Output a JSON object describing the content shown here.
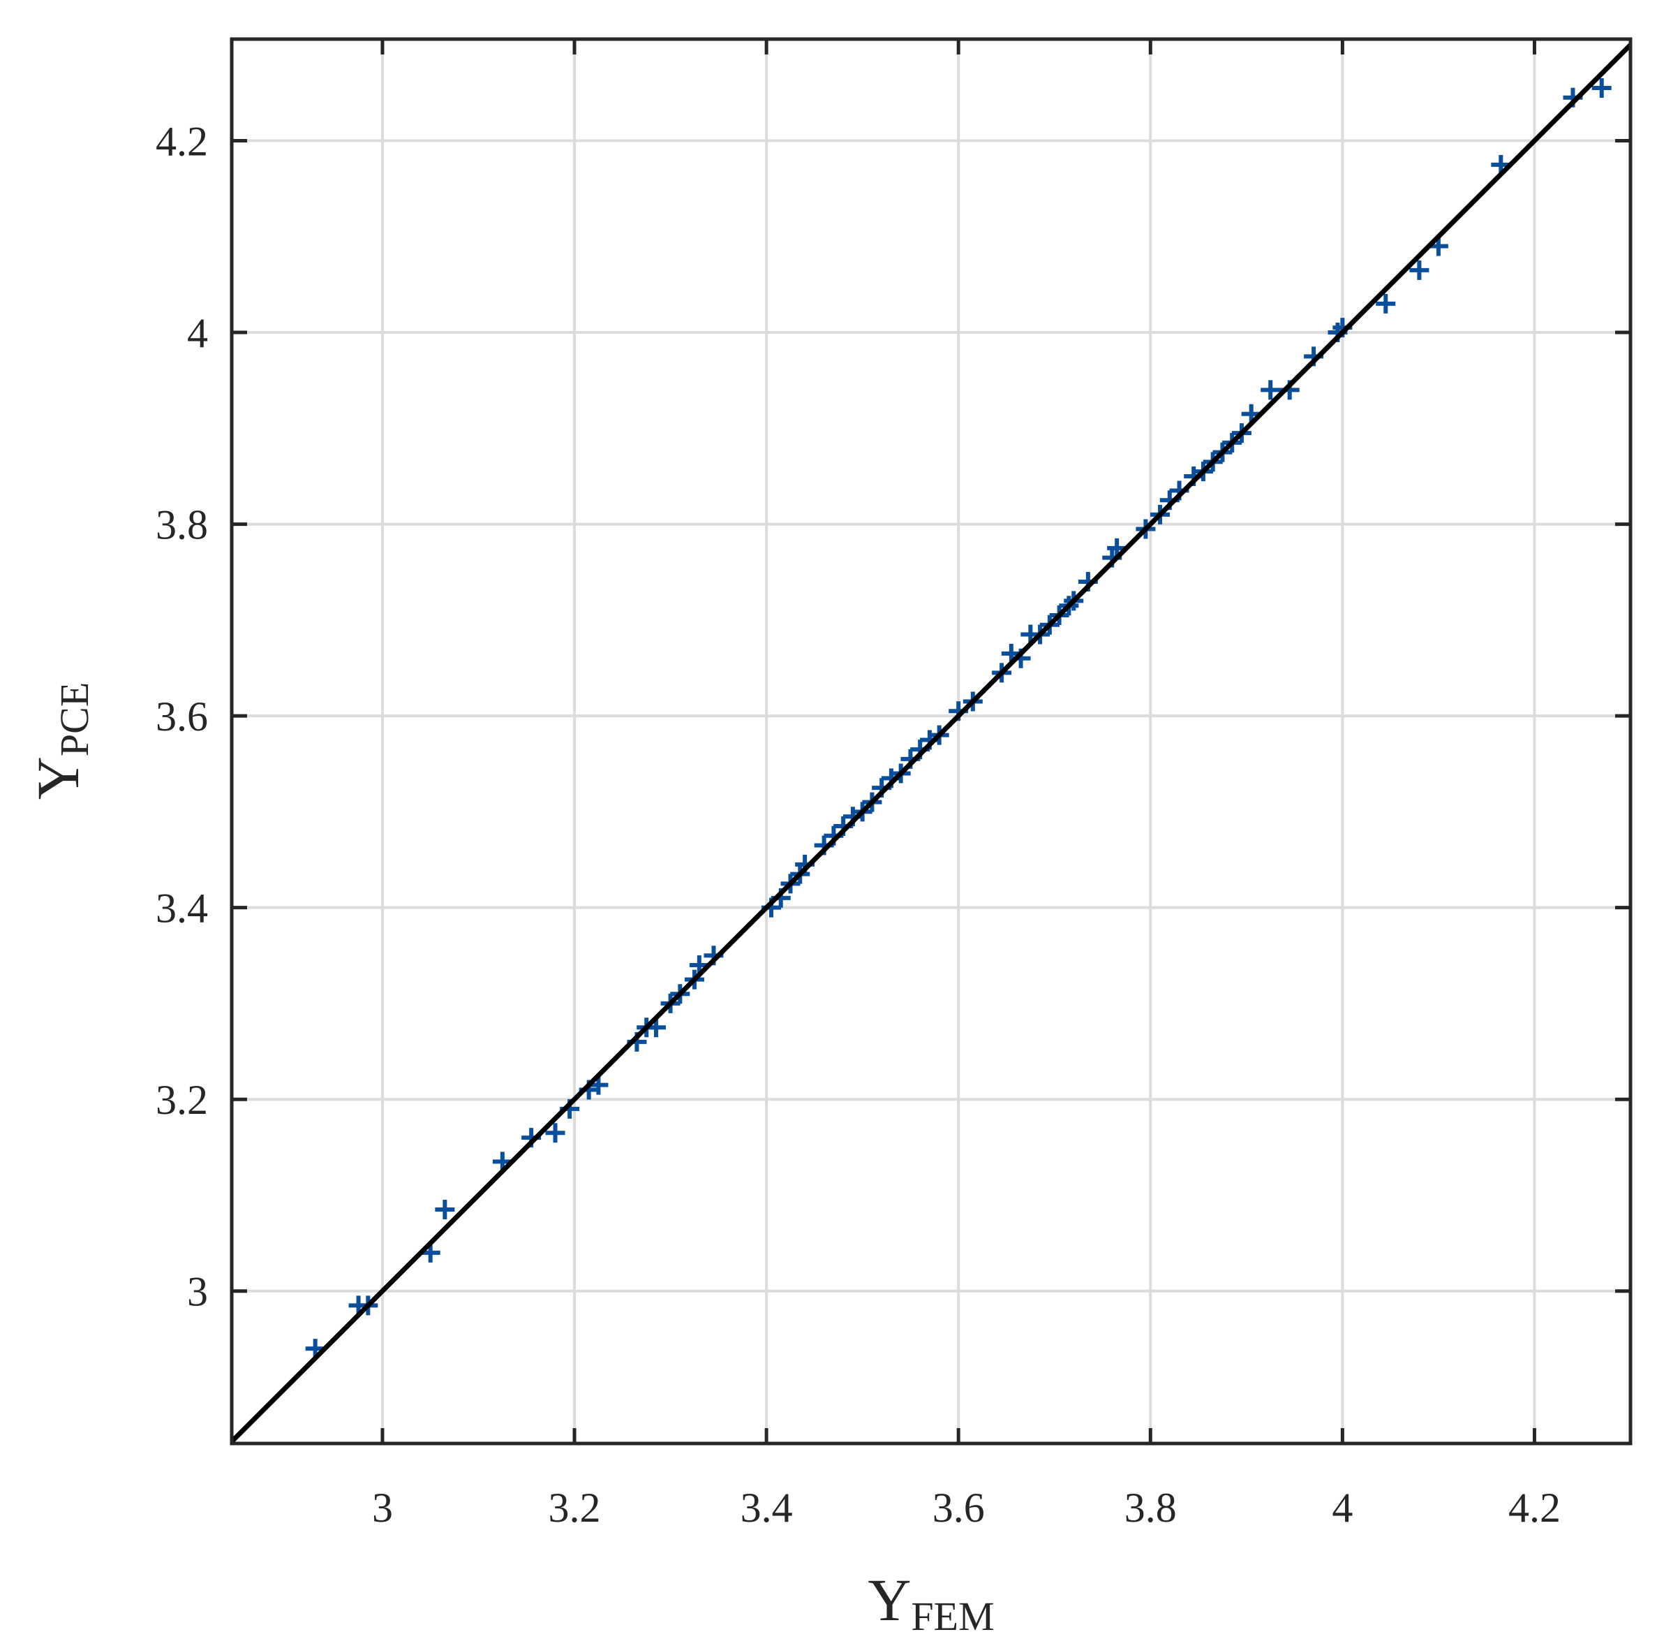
{
  "chart_data": {
    "type": "scatter",
    "xlabel": {
      "main": "Y",
      "sub": "FEM"
    },
    "ylabel": {
      "main": "Y",
      "sub": "PCE"
    },
    "xlim": [
      2.843,
      4.3
    ],
    "ylim": [
      2.841,
      4.306
    ],
    "xticks": [
      3,
      3.2,
      3.4,
      3.6,
      3.8,
      4,
      4.2
    ],
    "yticks": [
      3,
      3.2,
      3.4,
      3.6,
      3.8,
      4,
      4.2
    ],
    "grid": true,
    "series": [
      {
        "color": "#0b4f9c",
        "marker": "+",
        "x": [
          2.93,
          2.975,
          2.985,
          3.05,
          3.065,
          3.125,
          3.155,
          3.18,
          3.195,
          3.215,
          3.225,
          3.265,
          3.275,
          3.285,
          3.3,
          3.31,
          3.325,
          3.33,
          3.345,
          3.405,
          3.415,
          3.425,
          3.435,
          3.44,
          3.46,
          3.47,
          3.48,
          3.49,
          3.5,
          3.51,
          3.52,
          3.53,
          3.54,
          3.55,
          3.56,
          3.57,
          3.58,
          3.6,
          3.615,
          3.645,
          3.655,
          3.665,
          3.675,
          3.685,
          3.695,
          3.705,
          3.715,
          3.72,
          3.735,
          3.76,
          3.765,
          3.795,
          3.81,
          3.82,
          3.83,
          3.845,
          3.855,
          3.865,
          3.875,
          3.885,
          3.895,
          3.905,
          3.925,
          3.945,
          3.97,
          3.995,
          4.0,
          4.045,
          4.08,
          4.1,
          4.165,
          4.24,
          4.27
        ],
        "values": [
          2.94,
          2.985,
          2.985,
          3.04,
          3.085,
          3.135,
          3.16,
          3.165,
          3.19,
          3.21,
          3.215,
          3.26,
          3.275,
          3.275,
          3.3,
          3.31,
          3.325,
          3.34,
          3.35,
          3.4,
          3.41,
          3.425,
          3.435,
          3.445,
          3.465,
          3.475,
          3.485,
          3.495,
          3.5,
          3.51,
          3.525,
          3.535,
          3.54,
          3.555,
          3.565,
          3.575,
          3.58,
          3.605,
          3.615,
          3.645,
          3.665,
          3.66,
          3.685,
          3.685,
          3.695,
          3.705,
          3.715,
          3.72,
          3.74,
          3.765,
          3.775,
          3.795,
          3.81,
          3.825,
          3.835,
          3.85,
          3.855,
          3.865,
          3.875,
          3.885,
          3.895,
          3.915,
          3.94,
          3.94,
          3.975,
          4.0,
          4.005,
          4.03,
          4.065,
          4.09,
          4.175,
          4.245,
          4.255
        ]
      }
    ],
    "reference_line": {
      "x": [
        2.843,
        4.3
      ],
      "values": [
        2.843,
        4.3
      ],
      "color": "#000000"
    }
  }
}
